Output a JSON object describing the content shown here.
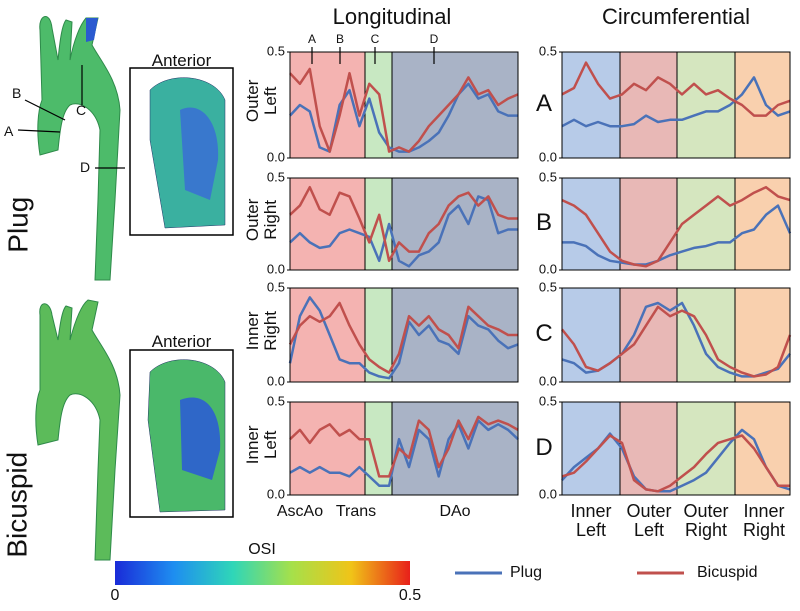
{
  "figure": {
    "rows": [
      "Plug",
      "Bicuspid"
    ],
    "view_label": "Anterior",
    "aorta_markers": [
      "A",
      "B",
      "C",
      "D"
    ],
    "colorbar": {
      "label": "OSI",
      "lim": [
        0,
        0.5
      ],
      "ticks": [
        0,
        0.5
      ]
    },
    "longitudinal": {
      "title": "Longitudinal",
      "regions": [
        "AscAo",
        "Trans",
        "DAo"
      ],
      "markers": [
        "A",
        "B",
        "C",
        "D"
      ]
    },
    "circumferential": {
      "title": "Circumferential",
      "regions": [
        "Inner Left",
        "Outer Left",
        "Outer Right",
        "Inner Right"
      ]
    }
  },
  "chart_data": [
    {
      "type": "line",
      "ylabel": "Outer Left",
      "ylim": [
        0,
        0.5
      ],
      "yticks": [
        {
          "value": 0,
          "label": "0.0"
        },
        0.5
      ],
      "series": [
        {
          "name": "Plug",
          "color": "#4a72b8",
          "values": [
            0.2,
            0.25,
            0.22,
            0.05,
            0.03,
            0.25,
            0.32,
            0.15,
            0.28,
            0.12,
            0.05,
            0.03,
            0.03,
            0.05,
            0.08,
            0.12,
            0.2,
            0.3,
            0.35,
            0.28,
            0.3,
            0.22,
            0.2,
            0.2
          ]
        },
        {
          "name": "Bicuspid",
          "color": "#c0504d",
          "values": [
            0.4,
            0.35,
            0.42,
            0.15,
            0.03,
            0.2,
            0.4,
            0.2,
            0.35,
            0.3,
            0.03,
            0.05,
            0.03,
            0.08,
            0.15,
            0.2,
            0.25,
            0.3,
            0.38,
            0.3,
            0.32,
            0.25,
            0.28,
            0.3
          ]
        }
      ]
    },
    {
      "type": "line",
      "ylabel": "Outer Right",
      "ylim": [
        0,
        0.5
      ],
      "yticks": [
        {
          "value": 0,
          "label": "0.0"
        },
        0.5
      ],
      "series": [
        {
          "name": "Plug",
          "color": "#4a72b8",
          "values": [
            0.15,
            0.2,
            0.15,
            0.12,
            0.13,
            0.2,
            0.22,
            0.2,
            0.18,
            0.05,
            0.25,
            0.05,
            0.02,
            0.08,
            0.1,
            0.15,
            0.3,
            0.35,
            0.25,
            0.4,
            0.38,
            0.2,
            0.22,
            0.22
          ]
        },
        {
          "name": "Bicuspid",
          "color": "#c0504d",
          "values": [
            0.3,
            0.35,
            0.45,
            0.33,
            0.3,
            0.42,
            0.4,
            0.28,
            0.15,
            0.3,
            0.05,
            0.15,
            0.1,
            0.1,
            0.2,
            0.25,
            0.35,
            0.4,
            0.42,
            0.35,
            0.4,
            0.3,
            0.28,
            0.28
          ]
        }
      ]
    },
    {
      "type": "line",
      "ylabel": "Inner Right",
      "ylim": [
        0,
        0.5
      ],
      "yticks": [
        {
          "value": 0,
          "label": "0.0"
        },
        0.5
      ],
      "series": [
        {
          "name": "Plug",
          "color": "#4a72b8",
          "values": [
            0.1,
            0.35,
            0.45,
            0.38,
            0.25,
            0.12,
            0.1,
            0.1,
            0.05,
            0.03,
            0.02,
            0.1,
            0.32,
            0.25,
            0.3,
            0.22,
            0.2,
            0.15,
            0.35,
            0.3,
            0.28,
            0.22,
            0.18,
            0.2
          ]
        },
        {
          "name": "Bicuspid",
          "color": "#c0504d",
          "values": [
            0.2,
            0.3,
            0.35,
            0.32,
            0.35,
            0.42,
            0.3,
            0.2,
            0.12,
            0.08,
            0.05,
            0.15,
            0.35,
            0.3,
            0.35,
            0.28,
            0.25,
            0.18,
            0.4,
            0.35,
            0.3,
            0.28,
            0.25,
            0.25
          ]
        }
      ]
    },
    {
      "type": "line",
      "ylabel": "Inner Left",
      "ylim": [
        0,
        0.5
      ],
      "yticks": [
        {
          "value": 0,
          "label": "0.0"
        },
        0.5
      ],
      "series": [
        {
          "name": "Plug",
          "color": "#4a72b8",
          "values": [
            0.12,
            0.15,
            0.12,
            0.15,
            0.12,
            0.12,
            0.1,
            0.15,
            0.1,
            0.05,
            0.05,
            0.3,
            0.15,
            0.35,
            0.3,
            0.1,
            0.3,
            0.38,
            0.25,
            0.4,
            0.35,
            0.38,
            0.35,
            0.3
          ]
        },
        {
          "name": "Bicuspid",
          "color": "#c0504d",
          "values": [
            0.3,
            0.35,
            0.28,
            0.35,
            0.38,
            0.32,
            0.35,
            0.3,
            0.3,
            0.1,
            0.1,
            0.25,
            0.2,
            0.4,
            0.35,
            0.15,
            0.25,
            0.4,
            0.3,
            0.42,
            0.38,
            0.4,
            0.38,
            0.35
          ]
        }
      ]
    },
    {
      "type": "line",
      "ylabel": "A",
      "ylim": [
        0,
        0.5
      ],
      "yticks": [
        {
          "value": 0,
          "label": "0.0"
        },
        0.5
      ],
      "series": [
        {
          "name": "Plug",
          "color": "#4a72b8",
          "values": [
            0.15,
            0.18,
            0.15,
            0.17,
            0.15,
            0.15,
            0.16,
            0.2,
            0.17,
            0.18,
            0.18,
            0.2,
            0.22,
            0.22,
            0.25,
            0.3,
            0.38,
            0.25,
            0.2,
            0.22
          ]
        },
        {
          "name": "Bicuspid",
          "color": "#c0504d",
          "values": [
            0.3,
            0.33,
            0.45,
            0.35,
            0.28,
            0.3,
            0.35,
            0.32,
            0.38,
            0.35,
            0.3,
            0.35,
            0.3,
            0.32,
            0.28,
            0.25,
            0.2,
            0.2,
            0.25,
            0.27
          ]
        }
      ]
    },
    {
      "type": "line",
      "ylabel": "B",
      "ylim": [
        0,
        0.5
      ],
      "yticks": [
        {
          "value": 0,
          "label": "0.0"
        },
        0.5
      ],
      "series": [
        {
          "name": "Plug",
          "color": "#4a72b8",
          "values": [
            0.15,
            0.15,
            0.13,
            0.08,
            0.05,
            0.04,
            0.03,
            0.03,
            0.05,
            0.08,
            0.1,
            0.12,
            0.13,
            0.15,
            0.15,
            0.2,
            0.22,
            0.3,
            0.35,
            0.2
          ]
        },
        {
          "name": "Bicuspid",
          "color": "#c0504d",
          "values": [
            0.38,
            0.35,
            0.3,
            0.2,
            0.1,
            0.05,
            0.03,
            0.02,
            0.05,
            0.15,
            0.25,
            0.3,
            0.35,
            0.4,
            0.35,
            0.38,
            0.42,
            0.45,
            0.4,
            0.38
          ]
        }
      ]
    },
    {
      "type": "line",
      "ylabel": "C",
      "ylim": [
        0,
        0.5
      ],
      "yticks": [
        {
          "value": 0,
          "label": "0.0"
        },
        0.5
      ],
      "series": [
        {
          "name": "Plug",
          "color": "#4a72b8",
          "values": [
            0.12,
            0.1,
            0.05,
            0.06,
            0.1,
            0.15,
            0.25,
            0.4,
            0.42,
            0.38,
            0.42,
            0.3,
            0.15,
            0.08,
            0.05,
            0.03,
            0.03,
            0.05,
            0.07,
            0.15
          ]
        },
        {
          "name": "Bicuspid",
          "color": "#c0504d",
          "values": [
            0.28,
            0.2,
            0.08,
            0.06,
            0.1,
            0.15,
            0.2,
            0.3,
            0.4,
            0.35,
            0.38,
            0.35,
            0.25,
            0.12,
            0.08,
            0.05,
            0.03,
            0.04,
            0.08,
            0.25
          ]
        }
      ]
    },
    {
      "type": "line",
      "ylabel": "D",
      "ylim": [
        0,
        0.5
      ],
      "yticks": [
        {
          "value": 0,
          "label": "0.0"
        },
        0.5
      ],
      "series": [
        {
          "name": "Plug",
          "color": "#4a72b8",
          "values": [
            0.08,
            0.15,
            0.2,
            0.25,
            0.33,
            0.25,
            0.1,
            0.03,
            0.02,
            0.02,
            0.05,
            0.08,
            0.12,
            0.2,
            0.28,
            0.35,
            0.3,
            0.15,
            0.05,
            0.03
          ]
        },
        {
          "name": "Bicuspid",
          "color": "#c0504d",
          "values": [
            0.1,
            0.12,
            0.18,
            0.25,
            0.32,
            0.28,
            0.08,
            0.03,
            0.02,
            0.05,
            0.1,
            0.15,
            0.22,
            0.28,
            0.3,
            0.32,
            0.25,
            0.15,
            0.05,
            0.05
          ]
        }
      ]
    }
  ]
}
